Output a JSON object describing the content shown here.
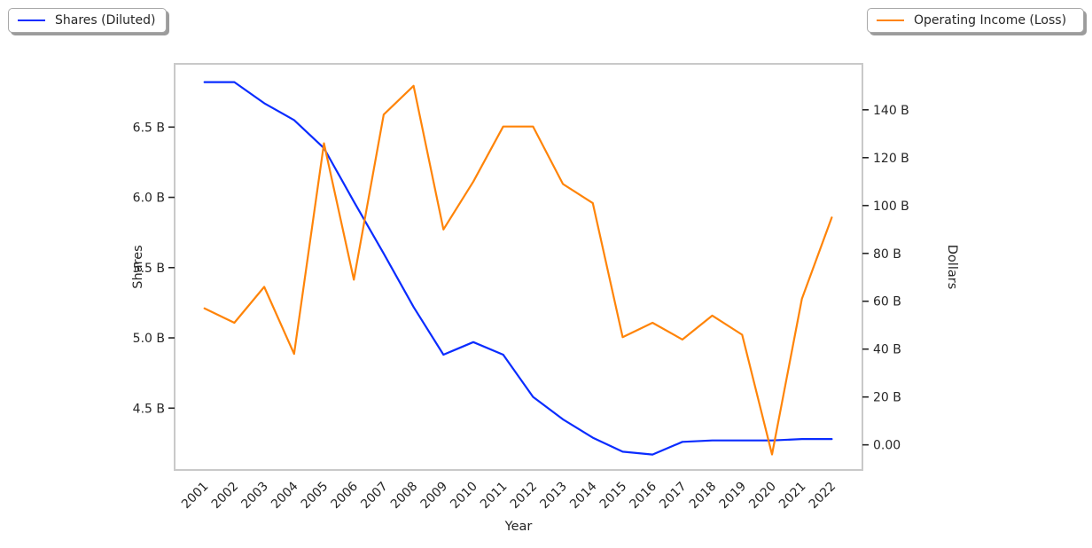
{
  "legend_left": {
    "label": "Shares (Diluted)",
    "color": "#0a2cff"
  },
  "legend_right": {
    "label": "Operating Income (Loss)",
    "color": "#ff8408"
  },
  "chart_data": {
    "type": "line",
    "title": "",
    "xlabel": "Year",
    "ylabel_left": "Shares",
    "ylabel_right": "Dollars",
    "grid": false,
    "legend_position": "top-left and top-right, outside axes",
    "categories": [
      "2001",
      "2002",
      "2003",
      "2004",
      "2005",
      "2006",
      "2007",
      "2008",
      "2009",
      "2010",
      "2011",
      "2012",
      "2013",
      "2014",
      "2015",
      "2016",
      "2017",
      "2018",
      "2019",
      "2020",
      "2021",
      "2022"
    ],
    "series": [
      {
        "name": "Shares (Diluted)",
        "axis": "left",
        "color": "#0a2cff",
        "unit": "billions of shares",
        "values": [
          6.82,
          6.82,
          6.67,
          6.55,
          6.35,
          5.97,
          5.6,
          5.22,
          4.88,
          4.97,
          4.88,
          4.58,
          4.42,
          4.29,
          4.19,
          4.17,
          4.26,
          4.27,
          4.27,
          4.27,
          4.28,
          4.28
        ]
      },
      {
        "name": "Operating Income (Loss)",
        "axis": "right",
        "color": "#ff8408",
        "unit": "billions of dollars",
        "values": [
          57,
          51,
          66,
          38,
          126,
          69,
          138,
          150,
          90,
          110,
          133,
          133,
          109,
          101,
          45,
          51,
          44,
          54,
          46,
          -4,
          61,
          95
        ]
      }
    ],
    "left_axis": {
      "range": [
        4.06,
        6.95
      ],
      "ticks": [
        6.5,
        6.0,
        5.5,
        5.0,
        4.5
      ],
      "tick_labels": [
        "6.5 B",
        "6.0 B",
        "5.5 B",
        "5.0 B",
        "4.5 B"
      ]
    },
    "right_axis": {
      "range": [
        -10.5,
        159.2
      ],
      "ticks": [
        140,
        120,
        100,
        80,
        60,
        40,
        20,
        0
      ],
      "tick_labels": [
        "140 B",
        "120 B",
        "100 B",
        "80 B",
        "60 B",
        "40 B",
        "20 B",
        "0.00"
      ]
    }
  }
}
